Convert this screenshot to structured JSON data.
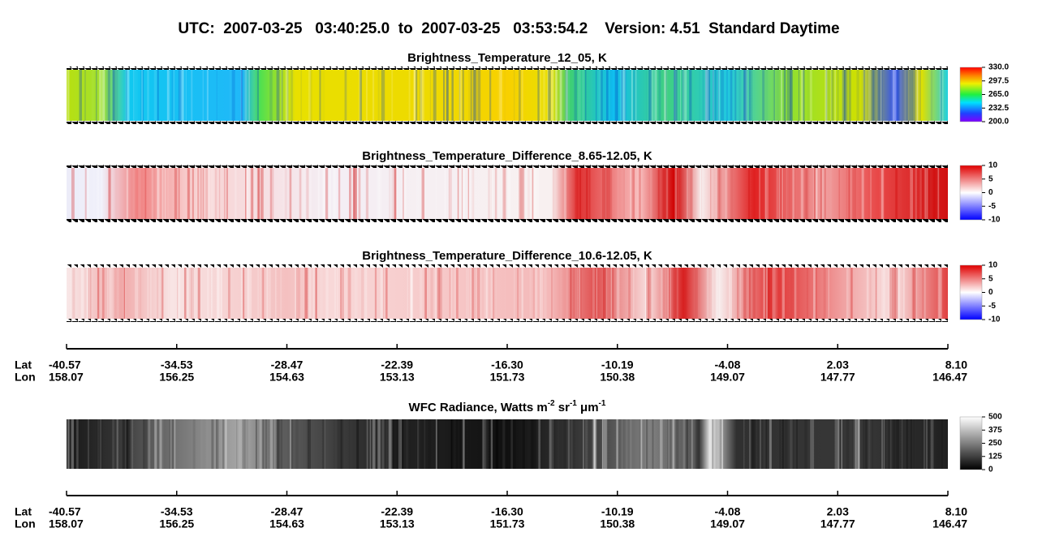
{
  "title": "UTC:  2007-03-25   03:40:25.0  to  2007-03-25   03:53:54.2    Version: 4.51  Standard Daytime",
  "panels": [
    {
      "title": "Brightness_Temperature_12_05, K",
      "colorbar_labels": [
        "330.0",
        "297.5",
        "265.0",
        "232.5",
        "200.0"
      ]
    },
    {
      "title": "Brightness_Temperature_Difference_8.65-12.05, K",
      "colorbar_labels": [
        "10",
        "5",
        "0",
        "-5",
        "-10"
      ]
    },
    {
      "title": "Brightness_Temperature_Difference_10.6-12.05, K",
      "colorbar_labels": [
        "10",
        "5",
        "0",
        "-5",
        "-10"
      ]
    },
    {
      "title_parts": [
        "WFC Radiance, Watts m",
        "-2",
        " sr",
        "-1",
        " μm",
        "-1"
      ],
      "colorbar_labels": [
        "500",
        "375",
        "250",
        "125",
        "0"
      ]
    }
  ],
  "axes": [
    {
      "lat_label": "Lat",
      "lon_label": "Lon",
      "lat": [
        "-40.57",
        "-34.53",
        "-28.47",
        "-22.39",
        "-16.30",
        "-10.19",
        "-4.08",
        "2.03",
        "8.10"
      ],
      "lon": [
        "158.07",
        "156.25",
        "154.63",
        "153.13",
        "151.73",
        "150.38",
        "149.07",
        "147.77",
        "146.47"
      ]
    },
    {
      "lat_label": "Lat",
      "lon_label": "Lon",
      "lat": [
        "-40.57",
        "-34.53",
        "-28.47",
        "-22.39",
        "-16.30",
        "-10.19",
        "-4.08",
        "2.03",
        "8.10"
      ],
      "lon": [
        "158.07",
        "156.25",
        "154.63",
        "153.13",
        "151.73",
        "150.38",
        "149.07",
        "147.77",
        "146.47"
      ]
    }
  ]
}
